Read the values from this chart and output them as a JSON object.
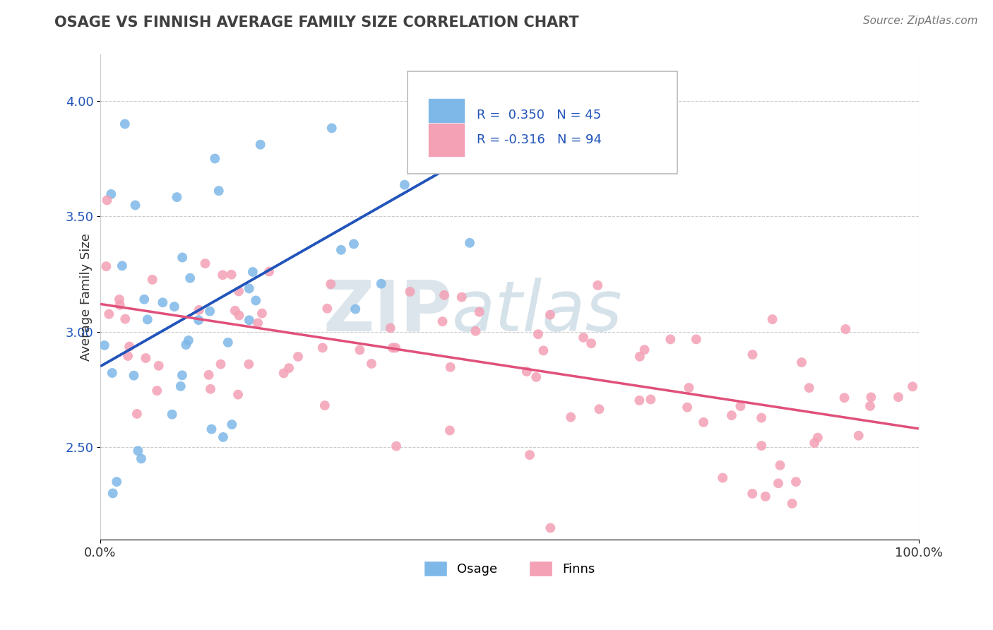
{
  "title": "OSAGE VS FINNISH AVERAGE FAMILY SIZE CORRELATION CHART",
  "source_text": "Source: ZipAtlas.com",
  "ylabel": "Average Family Size",
  "xlim": [
    0,
    100
  ],
  "ylim": [
    2.1,
    4.2
  ],
  "yticks": [
    2.5,
    3.0,
    3.5,
    4.0
  ],
  "osage_R": 0.35,
  "osage_N": 45,
  "finns_R": -0.316,
  "finns_N": 94,
  "osage_color": "#7EB8E8",
  "finns_color": "#F4A0B5",
  "osage_line_color": "#2255BB",
  "finns_line_color": "#E0507A",
  "background_color": "#FFFFFF",
  "grid_color": "#CCCCCC",
  "title_color": "#404040",
  "legend_r_color": "#2255BB",
  "osage_line_x0": 0,
  "osage_line_y0": 2.85,
  "osage_line_x1": 46,
  "osage_line_y1": 3.78,
  "osage_dash_x0": 46,
  "osage_dash_y0": 3.78,
  "osage_dash_x1": 58,
  "osage_dash_y1": 4.02,
  "finns_line_x0": 0,
  "finns_line_y0": 3.12,
  "finns_line_x1": 100,
  "finns_line_y1": 2.58
}
